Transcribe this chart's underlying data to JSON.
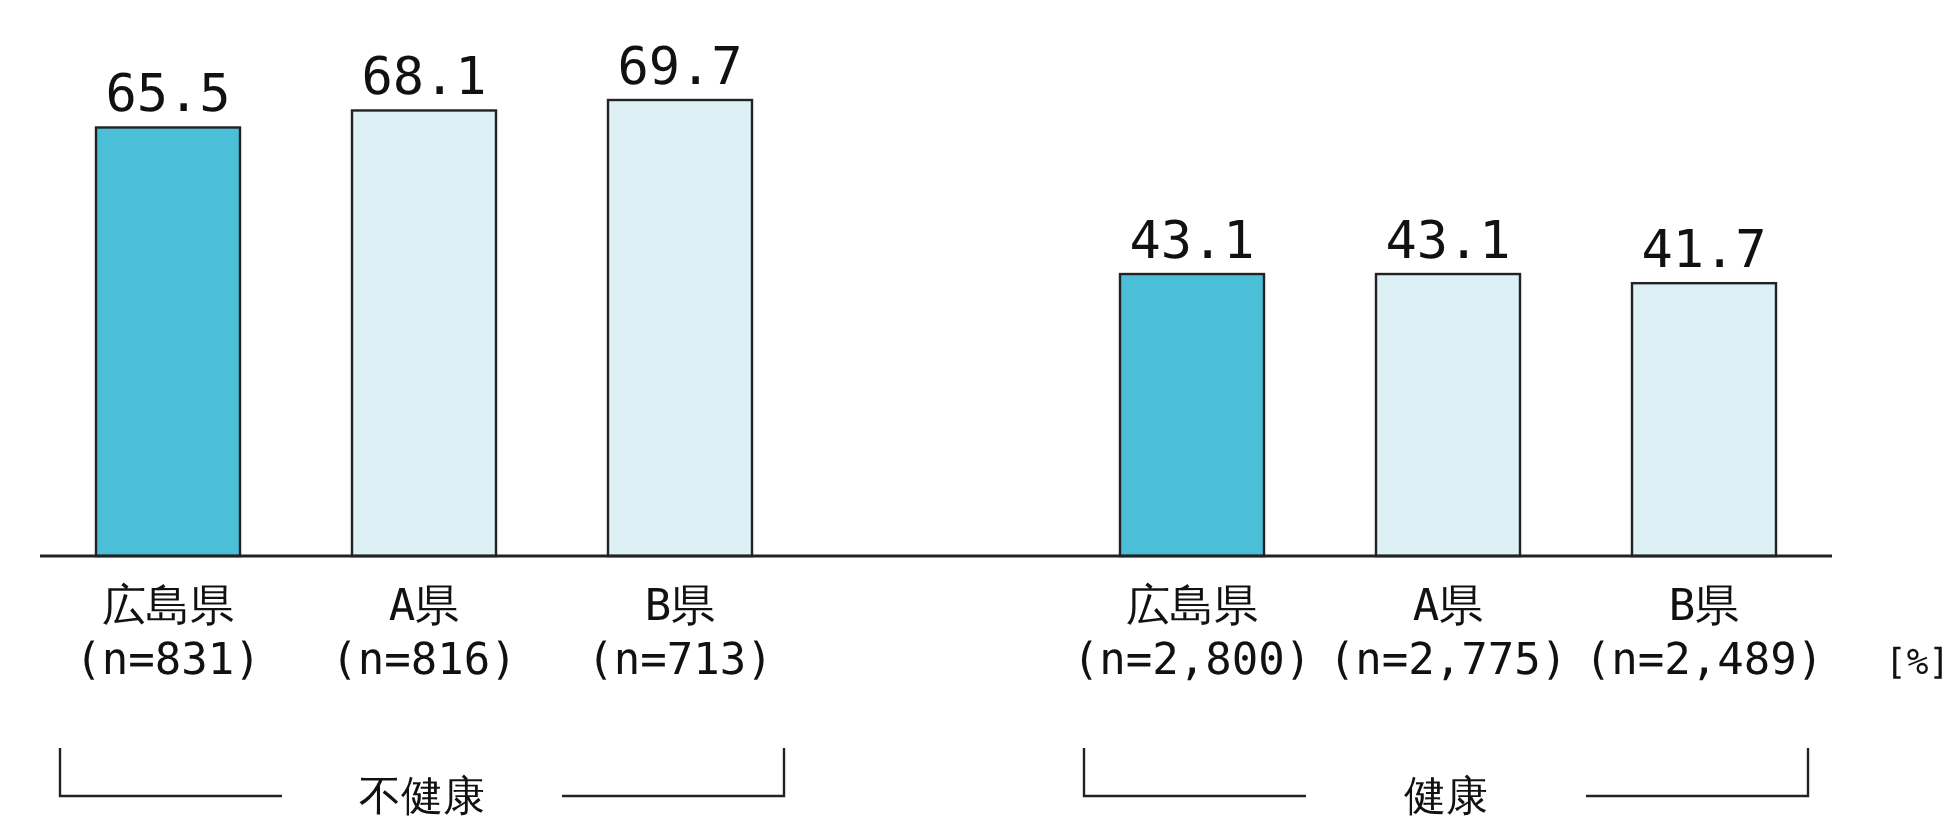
{
  "chart_data": {
    "type": "bar",
    "categories": [
      "広島県\n(n=831)",
      "A県\n(n=816)",
      "B県\n(n=713)",
      null,
      "広島県\n(n=2,800)",
      "A県\n(n=2,775)",
      "B県\n(n=2,489)"
    ],
    "values": [
      65.5,
      68.1,
      69.7,
      null,
      43.1,
      43.1,
      41.7
    ],
    "colors": [
      "#4bbfd8",
      "#dcf0f6",
      "#dcf0f6",
      null,
      "#4bbfd8",
      "#dcf0f6",
      "#dcf0f6"
    ],
    "data_labels": true,
    "annotations": [
      "不健康",
      "健康",
      "[%]"
    ]
  }
}
